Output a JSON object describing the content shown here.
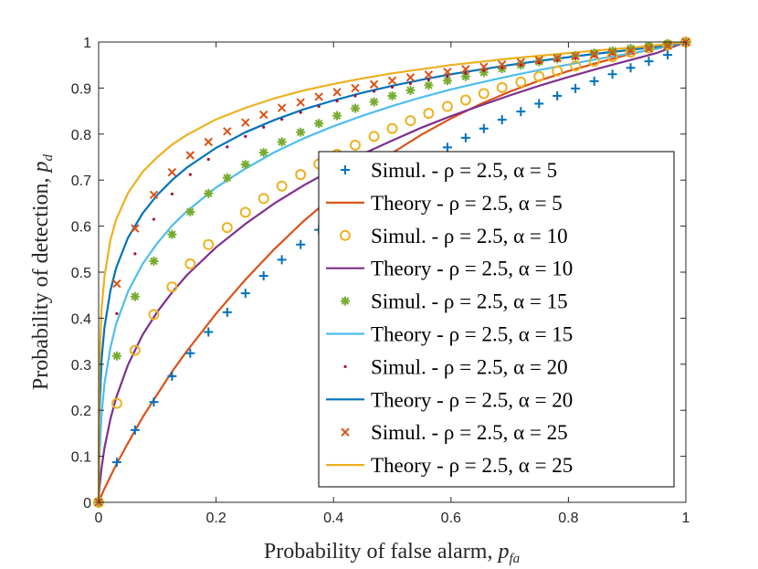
{
  "chart_data": {
    "type": "line",
    "xlabel": "Probability of false alarm, ",
    "xlabel_sub": "p",
    "xlabel_subsub": "fa",
    "ylabel": "Probability of detection, ",
    "ylabel_sub": "p",
    "ylabel_subsub": "d",
    "xlim": [
      0,
      1
    ],
    "ylim": [
      0,
      1
    ],
    "xticks": [
      "0",
      "0.2",
      "0.4",
      "0.6",
      "0.8",
      "1"
    ],
    "yticks": [
      "0",
      "0.1",
      "0.2",
      "0.3",
      "0.4",
      "0.5",
      "0.6",
      "0.7",
      "0.8",
      "0.9",
      "1"
    ],
    "grid": false,
    "legend_position": "center-right",
    "x": [
      0,
      0.001,
      0.005,
      0.01,
      0.02,
      0.03,
      0.05,
      0.075,
      0.1,
      0.125,
      0.15,
      0.2,
      0.25,
      0.3,
      0.35,
      0.4,
      0.45,
      0.5,
      0.55,
      0.6,
      0.65,
      0.7,
      0.75,
      0.8,
      0.85,
      0.9,
      0.95,
      1.0
    ],
    "series": [
      {
        "name": "Theory - ρ = 2.5, α = 5",
        "color": "#D95319",
        "style": "line",
        "values": [
          0,
          0.0033,
          0.0155,
          0.0296,
          0.0563,
          0.082,
          0.129,
          0.185,
          0.235,
          0.284,
          0.328,
          0.41,
          0.484,
          0.551,
          0.612,
          0.666,
          0.715,
          0.759,
          0.799,
          0.834,
          0.865,
          0.892,
          0.916,
          0.937,
          0.955,
          0.972,
          0.987,
          1.0
        ]
      },
      {
        "name": "Simul. - ρ = 2.5, α = 5",
        "color": "#0072BD",
        "style": "plus",
        "x": [
          0,
          0.031,
          0.062,
          0.094,
          0.125,
          0.156,
          0.187,
          0.219,
          0.25,
          0.281,
          0.312,
          0.344,
          0.375,
          0.406,
          0.437,
          0.469,
          0.5,
          0.531,
          0.562,
          0.594,
          0.625,
          0.656,
          0.687,
          0.719,
          0.75,
          0.781,
          0.812,
          0.844,
          0.875,
          0.906,
          0.937,
          0.969,
          1.0
        ],
        "values": [
          0,
          0.087,
          0.157,
          0.218,
          0.274,
          0.324,
          0.37,
          0.413,
          0.454,
          0.492,
          0.527,
          0.56,
          0.592,
          0.622,
          0.65,
          0.677,
          0.702,
          0.726,
          0.749,
          0.771,
          0.792,
          0.812,
          0.831,
          0.849,
          0.866,
          0.883,
          0.899,
          0.915,
          0.93,
          0.944,
          0.958,
          0.972,
          1.0
        ]
      },
      {
        "name": "Theory - ρ = 2.5, α = 10",
        "color": "#7E2F8E",
        "style": "line",
        "values": [
          0,
          0.025,
          0.075,
          0.118,
          0.181,
          0.228,
          0.299,
          0.364,
          0.414,
          0.456,
          0.493,
          0.554,
          0.605,
          0.65,
          0.689,
          0.724,
          0.757,
          0.786,
          0.814,
          0.839,
          0.862,
          0.884,
          0.905,
          0.924,
          0.942,
          0.959,
          0.976,
          1.0
        ]
      },
      {
        "name": "Simul. - ρ = 2.5, α = 10",
        "color": "#EDB120",
        "style": "circle",
        "x": [
          0,
          0.031,
          0.062,
          0.094,
          0.125,
          0.156,
          0.187,
          0.219,
          0.25,
          0.281,
          0.312,
          0.344,
          0.375,
          0.406,
          0.437,
          0.469,
          0.5,
          0.531,
          0.562,
          0.594,
          0.625,
          0.656,
          0.687,
          0.719,
          0.75,
          0.781,
          0.812,
          0.844,
          0.875,
          0.906,
          0.937,
          0.969,
          1.0
        ],
        "values": [
          0,
          0.215,
          0.33,
          0.408,
          0.468,
          0.518,
          0.56,
          0.597,
          0.63,
          0.66,
          0.687,
          0.712,
          0.735,
          0.756,
          0.776,
          0.795,
          0.812,
          0.829,
          0.845,
          0.86,
          0.874,
          0.888,
          0.901,
          0.913,
          0.925,
          0.937,
          0.948,
          0.958,
          0.968,
          0.978,
          0.987,
          0.994,
          1.0
        ]
      },
      {
        "name": "Theory - ρ = 2.5, α = 15",
        "color": "#4DBEEE",
        "style": "line",
        "values": [
          0,
          0.09,
          0.19,
          0.258,
          0.336,
          0.388,
          0.458,
          0.518,
          0.563,
          0.601,
          0.632,
          0.684,
          0.725,
          0.761,
          0.791,
          0.817,
          0.84,
          0.861,
          0.88,
          0.897,
          0.912,
          0.926,
          0.939,
          0.951,
          0.963,
          0.974,
          0.985,
          1.0
        ]
      },
      {
        "name": "Simul. - ρ = 2.5, α = 15",
        "color": "#77AC30",
        "style": "asterisk",
        "x": [
          0,
          0.031,
          0.062,
          0.094,
          0.125,
          0.156,
          0.187,
          0.219,
          0.25,
          0.281,
          0.312,
          0.344,
          0.375,
          0.406,
          0.437,
          0.469,
          0.5,
          0.531,
          0.562,
          0.594,
          0.625,
          0.656,
          0.687,
          0.719,
          0.75,
          0.781,
          0.812,
          0.844,
          0.875,
          0.906,
          0.937,
          0.969,
          1.0
        ],
        "values": [
          0,
          0.318,
          0.447,
          0.524,
          0.582,
          0.631,
          0.671,
          0.705,
          0.734,
          0.76,
          0.783,
          0.804,
          0.823,
          0.84,
          0.856,
          0.87,
          0.883,
          0.895,
          0.906,
          0.916,
          0.925,
          0.934,
          0.942,
          0.95,
          0.957,
          0.964,
          0.97,
          0.976,
          0.981,
          0.986,
          0.991,
          0.996,
          1.0
        ]
      },
      {
        "name": "Theory - ρ = 2.5, α = 20",
        "color": "#0072BD",
        "style": "line",
        "values": [
          0,
          0.18,
          0.31,
          0.38,
          0.46,
          0.51,
          0.575,
          0.628,
          0.668,
          0.7,
          0.727,
          0.77,
          0.804,
          0.831,
          0.854,
          0.873,
          0.89,
          0.905,
          0.918,
          0.93,
          0.94,
          0.95,
          0.959,
          0.967,
          0.975,
          0.982,
          0.99,
          1.0
        ]
      },
      {
        "name": "Simul. - ρ = 2.5, α = 20",
        "color": "#A2142F",
        "style": "dot",
        "x": [
          0,
          0.031,
          0.062,
          0.094,
          0.125,
          0.156,
          0.187,
          0.219,
          0.25,
          0.281,
          0.312,
          0.344,
          0.375,
          0.406,
          0.437,
          0.469,
          0.5,
          0.531,
          0.562,
          0.594,
          0.625,
          0.656,
          0.687,
          0.719,
          0.75,
          0.781,
          0.812,
          0.844,
          0.875,
          0.906,
          0.937,
          0.969,
          1.0
        ],
        "values": [
          0,
          0.41,
          0.54,
          0.615,
          0.67,
          0.712,
          0.745,
          0.772,
          0.795,
          0.815,
          0.832,
          0.847,
          0.86,
          0.872,
          0.883,
          0.893,
          0.902,
          0.91,
          0.918,
          0.925,
          0.932,
          0.938,
          0.944,
          0.95,
          0.955,
          0.96,
          0.965,
          0.97,
          0.975,
          0.98,
          0.985,
          0.992,
          1.0
        ]
      },
      {
        "name": "Theory - ρ = 2.5, α = 25",
        "color": "#EDB120",
        "style": "line",
        "values": [
          0,
          0.28,
          0.42,
          0.49,
          0.57,
          0.615,
          0.672,
          0.718,
          0.75,
          0.777,
          0.798,
          0.832,
          0.857,
          0.878,
          0.895,
          0.909,
          0.921,
          0.932,
          0.941,
          0.95,
          0.957,
          0.964,
          0.97,
          0.976,
          0.982,
          0.987,
          0.993,
          1.0
        ]
      },
      {
        "name": "Simul. - ρ = 2.5, α = 25",
        "color": "#D95319",
        "style": "cross",
        "x": [
          0,
          0.031,
          0.062,
          0.094,
          0.125,
          0.156,
          0.187,
          0.219,
          0.25,
          0.281,
          0.312,
          0.344,
          0.375,
          0.406,
          0.437,
          0.469,
          0.5,
          0.531,
          0.562,
          0.594,
          0.625,
          0.656,
          0.687,
          0.719,
          0.75,
          0.781,
          0.812,
          0.844,
          0.875,
          0.906,
          0.937,
          0.969,
          1.0
        ],
        "values": [
          0,
          0.475,
          0.595,
          0.668,
          0.717,
          0.754,
          0.783,
          0.806,
          0.825,
          0.842,
          0.857,
          0.869,
          0.881,
          0.891,
          0.9,
          0.908,
          0.916,
          0.923,
          0.929,
          0.935,
          0.941,
          0.946,
          0.951,
          0.956,
          0.961,
          0.965,
          0.969,
          0.973,
          0.977,
          0.981,
          0.986,
          0.992,
          1.0
        ]
      }
    ],
    "legend": [
      {
        "style": "plus",
        "color": "#0072BD",
        "label": "Simul. - ρ = 2.5, α = 5"
      },
      {
        "style": "line",
        "color": "#D95319",
        "label": "Theory - ρ = 2.5, α = 5"
      },
      {
        "style": "circle",
        "color": "#EDB120",
        "label": "Simul. - ρ = 2.5, α = 10"
      },
      {
        "style": "line",
        "color": "#7E2F8E",
        "label": "Theory - ρ = 2.5, α = 10"
      },
      {
        "style": "asterisk",
        "color": "#77AC30",
        "label": "Simul. - ρ = 2.5, α = 15"
      },
      {
        "style": "line",
        "color": "#4DBEEE",
        "label": "Theory - ρ = 2.5, α = 15"
      },
      {
        "style": "dot",
        "color": "#A2142F",
        "label": "Simul. - ρ = 2.5, α = 20"
      },
      {
        "style": "line",
        "color": "#0072BD",
        "label": "Theory - ρ = 2.5, α = 20"
      },
      {
        "style": "cross",
        "color": "#D95319",
        "label": "Simul. - ρ = 2.5, α = 25"
      },
      {
        "style": "line",
        "color": "#EDB120",
        "label": "Theory - ρ = 2.5, α = 25"
      }
    ]
  }
}
